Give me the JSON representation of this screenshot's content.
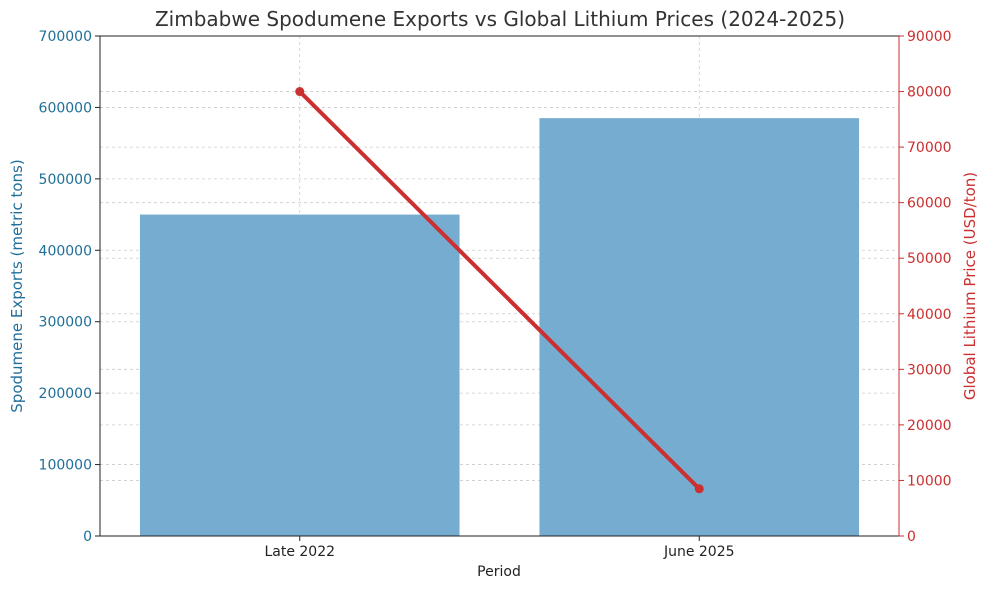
{
  "chart_data": {
    "type": "bar",
    "title": "Zimbabwe Spodumene Exports vs Global Lithium Prices (2024-2025)",
    "categories": [
      "Late 2022",
      "June 2025"
    ],
    "xlabel": "Period",
    "grid": true,
    "series": [
      {
        "type": "bar",
        "values": [
          450000,
          585000
        ],
        "axis": "left",
        "color": "#76acd0"
      },
      {
        "type": "line",
        "values": [
          80000,
          8500
        ],
        "axis": "right",
        "color": "#cc2f2f"
      }
    ],
    "y_left": {
      "label": "Spodumene Exports (metric tons)",
      "lim": [
        0,
        700000
      ],
      "ticks": [
        0,
        100000,
        200000,
        300000,
        400000,
        500000,
        600000,
        700000
      ],
      "color": "#1f6f9a"
    },
    "y_right": {
      "label": "Global Lithium Price (USD/ton)",
      "lim": [
        0,
        90000
      ],
      "ticks": [
        0,
        10000,
        20000,
        30000,
        40000,
        50000,
        60000,
        70000,
        80000,
        90000
      ],
      "color": "#cc2f2f"
    }
  }
}
